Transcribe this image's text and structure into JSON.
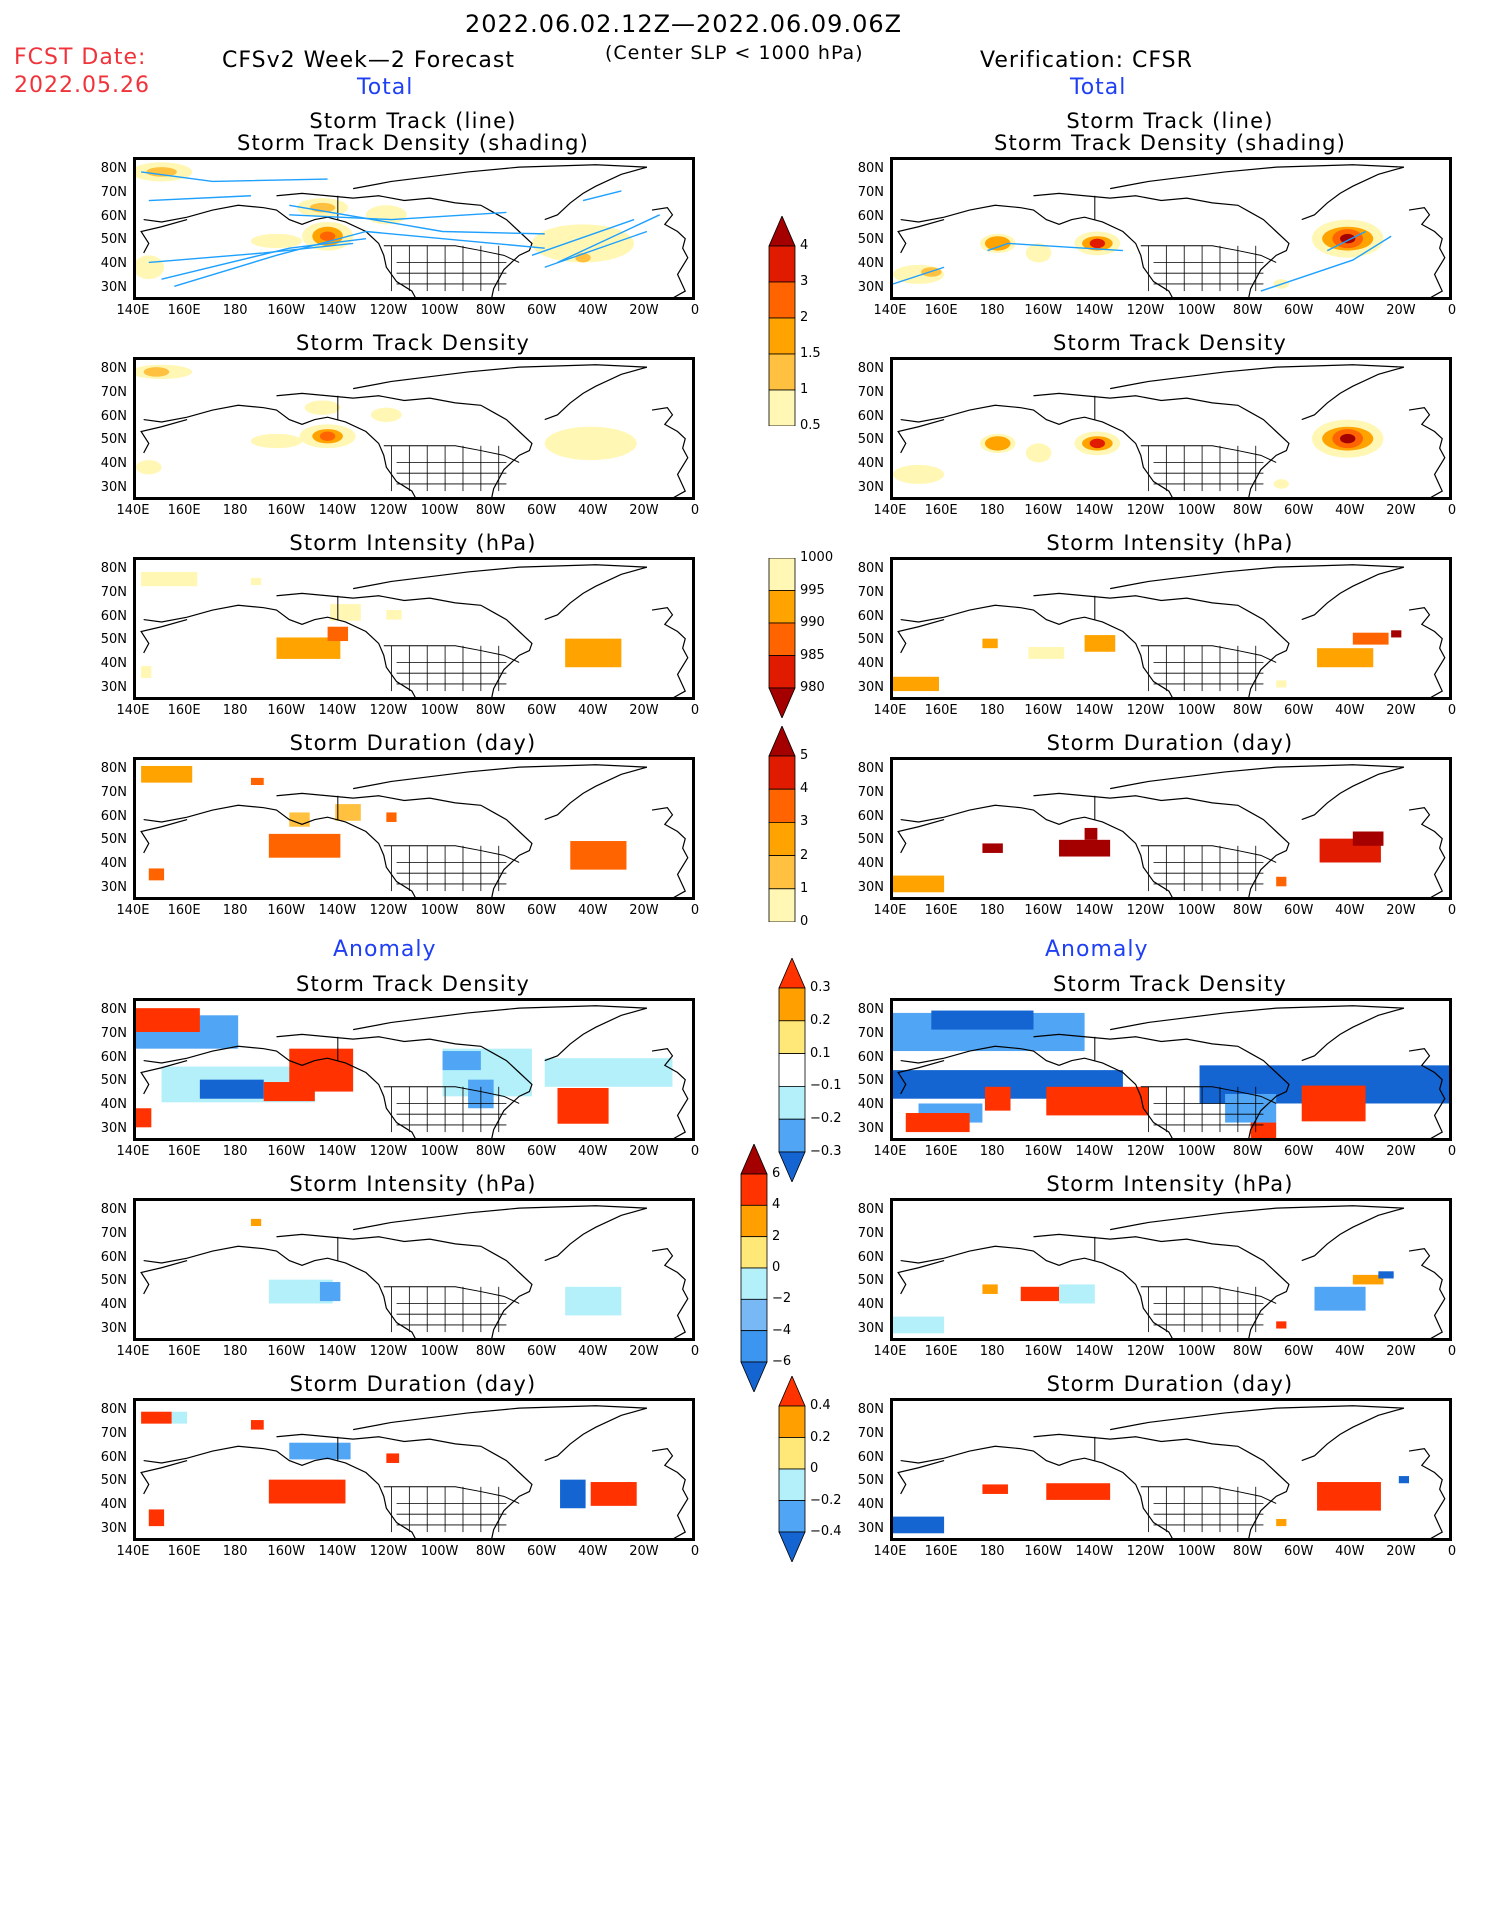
{
  "header": {
    "period": "2022.06.02.12Z—2022.06.09.06Z",
    "criteria": "(Center SLP < 1000 hPa)",
    "fcst_label": "FCST Date:",
    "fcst_date": "2022.05.26",
    "left_title": "CFSv2 Week—2 Forecast",
    "right_title": "Verification: CFSR",
    "total_label": "Total",
    "anomaly_label": "Anomaly"
  },
  "axes": {
    "lat_ticks": [
      "80N",
      "70N",
      "60N",
      "50N",
      "40N",
      "30N"
    ],
    "lat_values": [
      80,
      70,
      60,
      50,
      40,
      30
    ],
    "lon_ticks": [
      "140E",
      "160E",
      "180",
      "160W",
      "140W",
      "120W",
      "100W",
      "80W",
      "60W",
      "40W",
      "20W",
      "0"
    ],
    "lat_range": [
      25,
      85
    ],
    "lon_range": [
      140,
      360
    ]
  },
  "colors": {
    "warm": [
      "#fff7b3",
      "#ffc13f",
      "#ffa300",
      "#ff6400",
      "#e11b00",
      "#a50000"
    ],
    "anom": [
      "#1464d2",
      "#50a5f5",
      "#b4f0fa",
      "#ffffff",
      "#ffe878",
      "#ffa000",
      "#ff3200",
      "#a50000"
    ],
    "track_line": "#1ea0ff"
  },
  "colorbars": [
    {
      "id": "density",
      "labels": [
        "4",
        "3",
        "2",
        "1.5",
        "1",
        "0.5"
      ],
      "colors": [
        "#a50000",
        "#e11b00",
        "#ff6400",
        "#ffa300",
        "#ffc13f",
        "#fff7b3"
      ],
      "arrow": "top"
    },
    {
      "id": "intensity",
      "labels": [
        "1000",
        "995",
        "990",
        "985",
        "980"
      ],
      "colors": [
        "#fff7b3",
        "#ffa300",
        "#ff6400",
        "#e11b00",
        "#a50000"
      ],
      "arrow": "bottom"
    },
    {
      "id": "duration",
      "labels": [
        "5",
        "4",
        "3",
        "2",
        "1",
        "0"
      ],
      "colors": [
        "#a50000",
        "#e11b00",
        "#ff6400",
        "#ffa300",
        "#ffc13f",
        "#fff7b3"
      ],
      "arrow": "top"
    },
    {
      "id": "anom-density",
      "labels": [
        "0.3",
        "0.2",
        "0.1",
        "−0.1",
        "−0.2",
        "−0.3"
      ],
      "colors": [
        "#ff3200",
        "#ffa000",
        "#ffe878",
        "#ffffff",
        "#b4f0fa",
        "#50a5f5",
        "#1464d2"
      ],
      "arrow": "both"
    },
    {
      "id": "anom-intensity",
      "labels": [
        "6",
        "4",
        "2",
        "0",
        "−2",
        "−4",
        "−6"
      ],
      "colors": [
        "#a50000",
        "#ff3200",
        "#ffa000",
        "#ffe878",
        "#b4f0fa",
        "#78b9f5",
        "#3c96f0",
        "#1464d2"
      ],
      "arrow": "both"
    },
    {
      "id": "anom-duration",
      "labels": [
        "0.4",
        "0.2",
        "0",
        "−0.2",
        "−0.4"
      ],
      "colors": [
        "#ff3200",
        "#ffa000",
        "#ffe878",
        "#b4f0fa",
        "#50a5f5",
        "#1464d2"
      ],
      "arrow": "both"
    }
  ],
  "panels": [
    {
      "id": "fc-track",
      "col": "left",
      "title": [
        "Storm Track (line)",
        "Storm Track Density (shading)"
      ],
      "blobs": [
        [
          150,
          80,
          12,
          4,
          0
        ],
        [
          150,
          80,
          6,
          2,
          1
        ],
        [
          213,
          65,
          10,
          4,
          0
        ],
        [
          213,
          65,
          5,
          2,
          1
        ],
        [
          215,
          53,
          10,
          6,
          0
        ],
        [
          215,
          53,
          6,
          4,
          2
        ],
        [
          215,
          53,
          3,
          2,
          3
        ],
        [
          195,
          51,
          10,
          3,
          0
        ],
        [
          145,
          40,
          6,
          5,
          0
        ],
        [
          315,
          50,
          20,
          8,
          0
        ],
        [
          315,
          44,
          3,
          2,
          1
        ],
        [
          238,
          62,
          8,
          4,
          0
        ]
      ],
      "tracks": [
        [
          [
            142,
            80
          ],
          [
            170,
            76
          ],
          [
            215,
            77
          ]
        ],
        [
          [
            145,
            68
          ],
          [
            185,
            70
          ]
        ],
        [
          [
            150,
            35
          ],
          [
            200,
            48
          ],
          [
            230,
            52
          ]
        ],
        [
          [
            145,
            42
          ],
          [
            190,
            46
          ],
          [
            225,
            50
          ]
        ],
        [
          [
            155,
            32
          ],
          [
            195,
            45
          ],
          [
            230,
            55
          ]
        ],
        [
          [
            200,
            62
          ],
          [
            240,
            60
          ],
          [
            285,
            63
          ]
        ],
        [
          [
            230,
            55
          ],
          [
            280,
            50
          ],
          [
            300,
            48
          ]
        ],
        [
          [
            300,
            40
          ],
          [
            340,
            55
          ]
        ],
        [
          [
            295,
            45
          ],
          [
            335,
            60
          ]
        ],
        [
          [
            305,
            42
          ],
          [
            345,
            62
          ]
        ],
        [
          [
            315,
            68
          ],
          [
            330,
            72
          ]
        ],
        [
          [
            200,
            66
          ],
          [
            260,
            55
          ],
          [
            300,
            54
          ]
        ]
      ]
    },
    {
      "id": "cfsr-track",
      "col": "right",
      "title": [
        "Storm Track (line)",
        "Storm Track Density (shading)"
      ],
      "blobs": [
        [
          150,
          37,
          10,
          4,
          0
        ],
        [
          155,
          38,
          4,
          2,
          1
        ],
        [
          181,
          50,
          7,
          4,
          0
        ],
        [
          181,
          50,
          5,
          3,
          2
        ],
        [
          197,
          46,
          5,
          4,
          0
        ],
        [
          220,
          50,
          9,
          5,
          0
        ],
        [
          220,
          50,
          6,
          3,
          2
        ],
        [
          220,
          50,
          3,
          2,
          4
        ],
        [
          318,
          52,
          14,
          8,
          0
        ],
        [
          318,
          52,
          10,
          5,
          2
        ],
        [
          318,
          52,
          6,
          4,
          3
        ],
        [
          318,
          52,
          3,
          2,
          5
        ],
        [
          292,
          33,
          3,
          2,
          0
        ]
      ],
      "tracks": [
        [
          [
            140,
            33
          ],
          [
            160,
            40
          ]
        ],
        [
          [
            177,
            47
          ],
          [
            185,
            50
          ],
          [
            230,
            47
          ]
        ],
        [
          [
            284,
            30
          ],
          [
            320,
            43
          ],
          [
            335,
            53
          ]
        ],
        [
          [
            310,
            47
          ],
          [
            325,
            55
          ]
        ]
      ]
    },
    {
      "id": "fc-density",
      "col": "left",
      "title": [
        "Storm Track Density"
      ],
      "blobs": [
        [
          150,
          80,
          12,
          3,
          0
        ],
        [
          148,
          80,
          5,
          2,
          1
        ],
        [
          213,
          65,
          7,
          3,
          0
        ],
        [
          215,
          53,
          11,
          5,
          0
        ],
        [
          215,
          53,
          6,
          3,
          2
        ],
        [
          215,
          53,
          3,
          2,
          3
        ],
        [
          195,
          51,
          10,
          3,
          0
        ],
        [
          145,
          40,
          5,
          3,
          0
        ],
        [
          318,
          50,
          18,
          7,
          0
        ],
        [
          238,
          62,
          6,
          3,
          0
        ]
      ]
    },
    {
      "id": "cfsr-density",
      "col": "right",
      "title": [
        "Storm Track Density"
      ],
      "blobs": [
        [
          150,
          37,
          10,
          4,
          0
        ],
        [
          181,
          50,
          7,
          4,
          0
        ],
        [
          181,
          50,
          5,
          3,
          2
        ],
        [
          197,
          46,
          5,
          4,
          0
        ],
        [
          220,
          50,
          9,
          5,
          0
        ],
        [
          220,
          50,
          6,
          3,
          2
        ],
        [
          220,
          50,
          3,
          2,
          4
        ],
        [
          318,
          52,
          14,
          8,
          0
        ],
        [
          318,
          52,
          10,
          5,
          2
        ],
        [
          318,
          52,
          6,
          4,
          3
        ],
        [
          318,
          52,
          3,
          2,
          5
        ],
        [
          292,
          33,
          3,
          2,
          0
        ]
      ]
    },
    {
      "id": "fc-intensity",
      "col": "left",
      "title": [
        "Storm Intensity (hPa)"
      ],
      "cells": [
        [
          142,
          77,
          22,
          6,
          0
        ],
        [
          195,
          48,
          25,
          9,
          2
        ],
        [
          215,
          54,
          8,
          6,
          3
        ],
        [
          216,
          63,
          12,
          7,
          0
        ],
        [
          238,
          62,
          6,
          4,
          0
        ],
        [
          308,
          46,
          22,
          12,
          2
        ],
        [
          142,
          38,
          4,
          5,
          0
        ],
        [
          185,
          76,
          4,
          3,
          0
        ]
      ]
    },
    {
      "id": "cfsr-intensity",
      "col": "right",
      "title": [
        "Storm Intensity (hPa)"
      ],
      "cells": [
        [
          140,
          33,
          18,
          6,
          2
        ],
        [
          175,
          50,
          6,
          4,
          2
        ],
        [
          193,
          46,
          14,
          5,
          0
        ],
        [
          215,
          50,
          12,
          7,
          2
        ],
        [
          306,
          44,
          22,
          8,
          2
        ],
        [
          320,
          52,
          14,
          5,
          3
        ],
        [
          335,
          54,
          4,
          3,
          5
        ],
        [
          290,
          33,
          4,
          3,
          0
        ]
      ]
    },
    {
      "id": "fc-duration",
      "col": "left",
      "title": [
        "Storm Duration (day)"
      ],
      "cells": [
        [
          142,
          79,
          20,
          7,
          2
        ],
        [
          185,
          76,
          5,
          3,
          3
        ],
        [
          200,
          60,
          8,
          6,
          1
        ],
        [
          192,
          49,
          28,
          10,
          3
        ],
        [
          218,
          63,
          10,
          7,
          1
        ],
        [
          238,
          61,
          4,
          4,
          3
        ],
        [
          310,
          45,
          22,
          12,
          3
        ],
        [
          145,
          37,
          6,
          5,
          3
        ]
      ]
    },
    {
      "id": "cfsr-duration",
      "col": "right",
      "title": [
        "Storm Duration (day)"
      ],
      "cells": [
        [
          140,
          33,
          20,
          7,
          2
        ],
        [
          175,
          48,
          8,
          4,
          5
        ],
        [
          205,
          48,
          20,
          7,
          5
        ],
        [
          215,
          54,
          5,
          5,
          5
        ],
        [
          307,
          47,
          24,
          10,
          4
        ],
        [
          320,
          52,
          12,
          6,
          5
        ],
        [
          290,
          34,
          4,
          4,
          3
        ]
      ]
    },
    {
      "id": "fc-anom-density",
      "col": "left",
      "title": [
        "Storm Track Density"
      ],
      "cells": [
        [
          140,
          72,
          40,
          14,
          1
        ],
        [
          150,
          50,
          60,
          15,
          2
        ],
        [
          165,
          48,
          25,
          8,
          0
        ],
        [
          140,
          77,
          25,
          10,
          6
        ],
        [
          200,
          56,
          25,
          18,
          6
        ],
        [
          190,
          47,
          20,
          8,
          6
        ],
        [
          260,
          55,
          35,
          20,
          2
        ],
        [
          270,
          46,
          10,
          12,
          1
        ],
        [
          260,
          60,
          15,
          8,
          1
        ],
        [
          300,
          55,
          50,
          12,
          2
        ],
        [
          305,
          41,
          20,
          15,
          6
        ],
        [
          140,
          36,
          6,
          8,
          6
        ]
      ]
    },
    {
      "id": "cfsr-anom-density",
      "col": "right",
      "title": [
        "Storm Track Density"
      ],
      "cells": [
        [
          140,
          72,
          75,
          16,
          1
        ],
        [
          155,
          77,
          40,
          8,
          0
        ],
        [
          140,
          50,
          90,
          12,
          0
        ],
        [
          150,
          38,
          25,
          8,
          1
        ],
        [
          176,
          44,
          10,
          10,
          6
        ],
        [
          200,
          43,
          40,
          12,
          6
        ],
        [
          145,
          34,
          25,
          8,
          6
        ],
        [
          260,
          50,
          100,
          16,
          0
        ],
        [
          270,
          40,
          20,
          12,
          1
        ],
        [
          300,
          42,
          25,
          15,
          6
        ],
        [
          280,
          30,
          10,
          8,
          6
        ]
      ]
    },
    {
      "id": "fc-anom-intensity",
      "col": "left",
      "title": [
        "Storm Intensity (hPa)"
      ],
      "cells": [
        [
          142,
          77,
          22,
          6,
          3
        ],
        [
          185,
          76,
          4,
          3,
          5
        ],
        [
          192,
          47,
          25,
          10,
          2
        ],
        [
          212,
          47,
          8,
          8,
          1
        ],
        [
          216,
          63,
          14,
          7,
          3
        ],
        [
          238,
          62,
          6,
          4,
          3
        ],
        [
          308,
          43,
          22,
          12,
          2
        ],
        [
          310,
          52,
          10,
          4,
          3
        ],
        [
          142,
          38,
          4,
          5,
          3
        ]
      ]
    },
    {
      "id": "cfsr-anom-intensity",
      "col": "right",
      "title": [
        "Storm Intensity (hPa)"
      ],
      "cells": [
        [
          140,
          33,
          20,
          7,
          2
        ],
        [
          175,
          48,
          6,
          4,
          5
        ],
        [
          190,
          46,
          18,
          6,
          6
        ],
        [
          205,
          46,
          14,
          8,
          2
        ],
        [
          305,
          44,
          20,
          10,
          1
        ],
        [
          320,
          52,
          12,
          4,
          5
        ],
        [
          330,
          54,
          6,
          3,
          0
        ],
        [
          290,
          33,
          4,
          3,
          6
        ]
      ]
    },
    {
      "id": "fc-anom-duration",
      "col": "left",
      "title": [
        "Storm Duration (day)"
      ],
      "cells": [
        [
          142,
          78,
          12,
          5,
          6
        ],
        [
          154,
          78,
          6,
          5,
          2
        ],
        [
          185,
          75,
          5,
          4,
          6
        ],
        [
          192,
          47,
          30,
          10,
          6
        ],
        [
          200,
          64,
          24,
          7,
          1
        ],
        [
          238,
          61,
          5,
          4,
          6
        ],
        [
          306,
          46,
          10,
          12,
          0
        ],
        [
          318,
          46,
          18,
          10,
          6
        ],
        [
          145,
          36,
          6,
          7,
          6
        ]
      ]
    },
    {
      "id": "cfsr-anom-duration",
      "col": "right",
      "title": [
        "Storm Duration (day)"
      ],
      "cells": [
        [
          140,
          33,
          20,
          7,
          0
        ],
        [
          175,
          48,
          10,
          4,
          6
        ],
        [
          200,
          47,
          25,
          7,
          6
        ],
        [
          306,
          45,
          25,
          12,
          6
        ],
        [
          338,
          52,
          4,
          3,
          0
        ],
        [
          290,
          34,
          4,
          3,
          5
        ]
      ]
    }
  ]
}
